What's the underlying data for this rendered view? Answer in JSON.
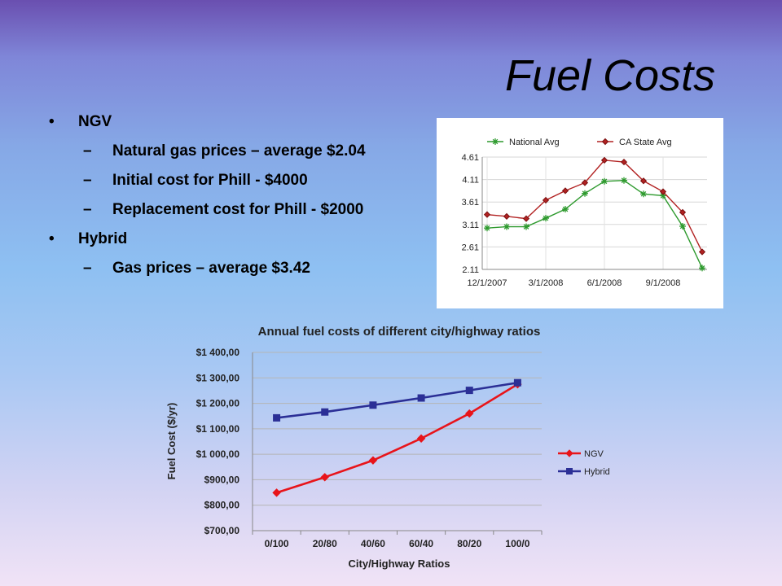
{
  "slide": {
    "title": "Fuel Costs",
    "bullets": [
      {
        "level": 1,
        "marker": "•",
        "text": "NGV"
      },
      {
        "level": 2,
        "marker": "–",
        "text": "Natural gas prices – average $2.04"
      },
      {
        "level": 2,
        "marker": "–",
        "text": "Initial cost for Phill - $4000"
      },
      {
        "level": 2,
        "marker": "–",
        "text": "Replacement cost for Phill - $2000"
      },
      {
        "level": 1,
        "marker": "•",
        "text": "Hybrid"
      },
      {
        "level": 2,
        "marker": "–",
        "text": "Gas prices – average $3.42"
      }
    ]
  },
  "chart_data": [
    {
      "type": "line",
      "title": "",
      "xlabel": "",
      "ylabel": "",
      "x_ticks": [
        "12/1/2007",
        "3/1/2008",
        "6/1/2008",
        "9/1/2008"
      ],
      "y_ticks": [
        "4.61",
        "4.11",
        "3.61",
        "3.11",
        "2.61",
        "2.11"
      ],
      "ylim": [
        2.11,
        4.61
      ],
      "grid": true,
      "legend_position": "top",
      "series": [
        {
          "name": "National Avg",
          "color": "#2e9a2e",
          "marker": "star",
          "values": [
            3.03,
            3.06,
            3.06,
            3.25,
            3.45,
            3.8,
            4.07,
            4.09,
            3.79,
            3.75,
            3.07,
            2.14
          ]
        },
        {
          "name": "CA State Avg",
          "color": "#b22222",
          "marker": "diamond",
          "values": [
            3.33,
            3.29,
            3.24,
            3.65,
            3.86,
            4.04,
            4.54,
            4.5,
            4.08,
            3.84,
            3.38,
            2.5
          ]
        }
      ]
    },
    {
      "type": "line",
      "title": "Annual fuel costs of different city/highway ratios",
      "xlabel": "City/Highway Ratios",
      "ylabel": "Fuel Cost ($/yr)",
      "categories": [
        "0/100",
        "20/80",
        "40/60",
        "60/40",
        "80/20",
        "100/0"
      ],
      "ylim": [
        700,
        1400
      ],
      "y_ticks": [
        "$700,00",
        "$800,00",
        "$900,00",
        "$1 000,00",
        "$1 100,00",
        "$1 200,00",
        "$1 300,00",
        "$1 400,00"
      ],
      "grid": true,
      "legend_position": "right",
      "series": [
        {
          "name": "NGV",
          "color": "#e8141a",
          "marker": "diamond",
          "values": [
            849,
            910,
            976,
            1062,
            1160,
            1275
          ]
        },
        {
          "name": "Hybrid",
          "color": "#2b2f96",
          "marker": "square",
          "values": [
            1143,
            1166,
            1193,
            1221,
            1251,
            1281
          ]
        }
      ]
    }
  ]
}
